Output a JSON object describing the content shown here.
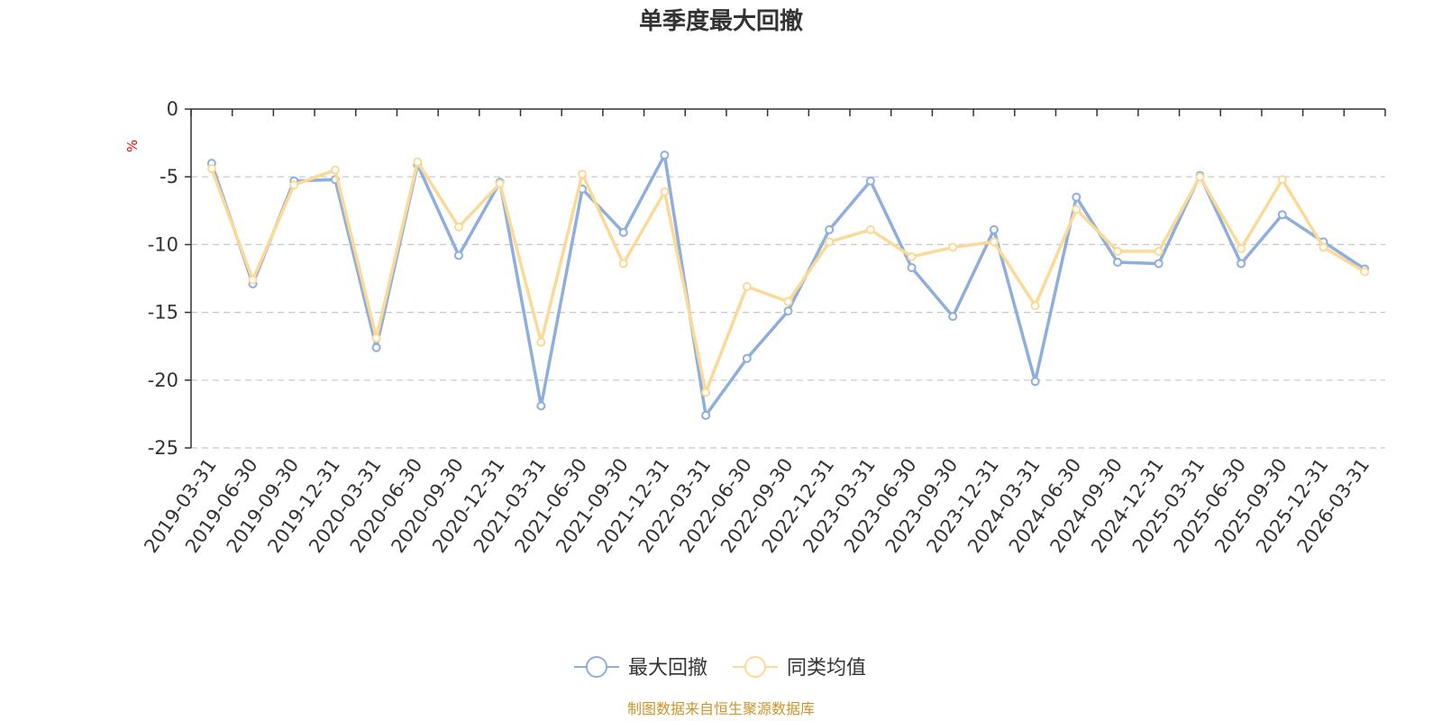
{
  "chart_data": {
    "type": "line",
    "title": "单季度最大回撤",
    "ylabel": "%",
    "ylim": [
      -25,
      0
    ],
    "yticks": [
      0,
      -5,
      -10,
      -15,
      -20,
      -25
    ],
    "grid": true,
    "legend_position": "bottom-center",
    "categories": [
      "2019-03-31",
      "2019-06-30",
      "2019-09-30",
      "2019-12-31",
      "2020-03-31",
      "2020-06-30",
      "2020-09-30",
      "2020-12-31",
      "2021-03-31",
      "2021-06-30",
      "2021-09-30",
      "2021-12-31",
      "2022-03-31",
      "2022-06-30",
      "2022-09-30",
      "2022-12-31",
      "2023-03-31",
      "2023-06-30",
      "2023-09-30",
      "2023-12-31",
      "2024-03-31",
      "2024-06-30",
      "2024-09-30",
      "2024-12-31",
      "2025-03-31",
      "2025-06-30",
      "2025-09-30",
      "2025-12-31",
      "2026-03-31"
    ],
    "series": [
      {
        "name": "最大回撤",
        "color": "#8eaedc",
        "values": [
          -4.0,
          -12.9,
          -5.3,
          -5.2,
          -17.6,
          -4.1,
          -10.8,
          -5.4,
          -21.9,
          -5.9,
          -9.1,
          -3.4,
          -22.6,
          -18.4,
          -14.9,
          -8.9,
          -5.3,
          -11.7,
          -15.3,
          -8.9,
          -20.1,
          -6.5,
          -11.3,
          -11.4,
          -4.9,
          -11.4,
          -7.8,
          -9.8,
          -11.8
        ]
      },
      {
        "name": "同类均值",
        "color": "#fbd997",
        "values": [
          -4.4,
          -12.6,
          -5.6,
          -4.5,
          -16.9,
          -3.9,
          -8.7,
          -5.5,
          -17.2,
          -4.8,
          -11.4,
          -6.1,
          -20.9,
          -13.1,
          -14.2,
          -9.8,
          -8.9,
          -10.9,
          -10.2,
          -9.8,
          -14.5,
          -7.4,
          -10.5,
          -10.5,
          -5.0,
          -10.3,
          -5.2,
          -10.2,
          -12.0
        ]
      }
    ]
  },
  "source_text": "制图数据来自恒生聚源数据库"
}
